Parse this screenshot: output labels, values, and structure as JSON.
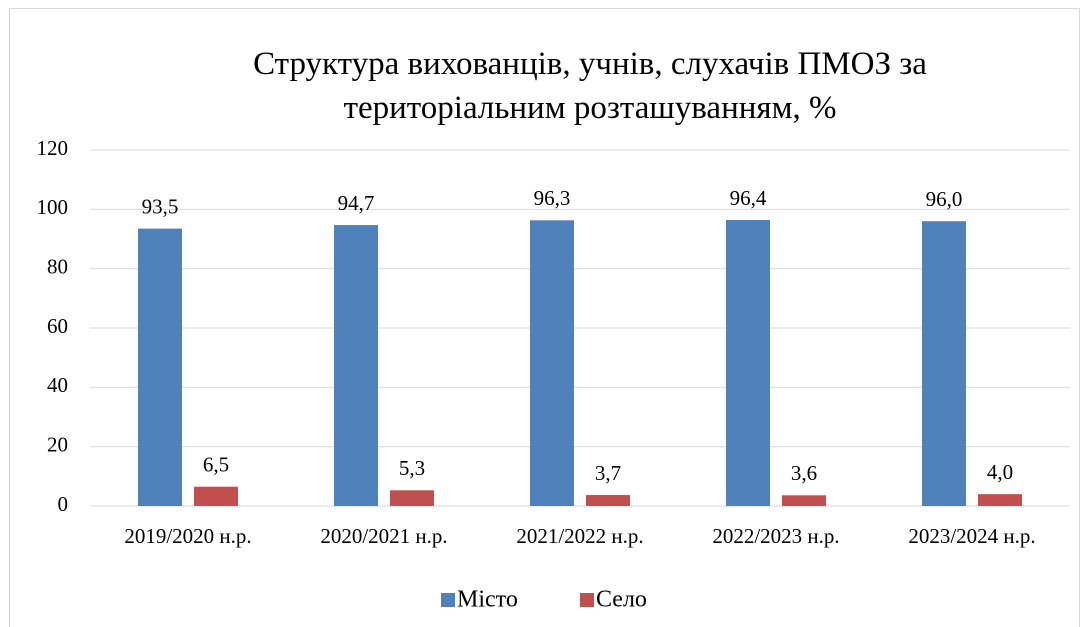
{
  "chart_data": {
    "type": "bar",
    "title": "Структура вихованців, учнів, слухачів ПМОЗ за територіальним розташуванням, %",
    "categories": [
      "2019/2020 н.р.",
      "2020/2021 н.р.",
      "2021/2022 н.р.",
      "2022/2023 н.р.",
      "2023/2024 н.р."
    ],
    "series": [
      {
        "name": "Місто",
        "color": "#4f81bd",
        "values": [
          93.5,
          94.7,
          96.3,
          96.4,
          96
        ],
        "value_labels": [
          "93,5",
          "94,7",
          "96,3",
          "96,4",
          "96,0"
        ]
      },
      {
        "name": "Село",
        "color": "#c0504d",
        "values": [
          6.5,
          5.3,
          3.7,
          3.6,
          4
        ],
        "value_labels": [
          "6,5",
          "5,3",
          "3,7",
          "3,6",
          "4,0"
        ]
      }
    ],
    "ylim": [
      0,
      120
    ],
    "yticks": [
      0,
      20,
      40,
      60,
      80,
      100,
      120
    ],
    "grid": true,
    "legend": "bottom"
  }
}
